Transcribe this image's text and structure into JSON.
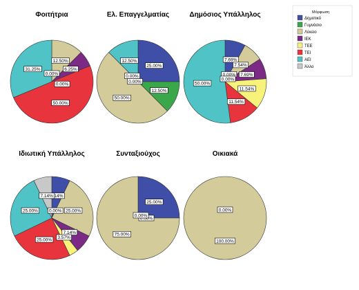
{
  "colors": {
    "Δημοτικό": "#3f4fa8",
    "Γυμνάσιο": "#3aa84a",
    "Λύκειο": "#d4cb9a",
    "ΙΕΚ": "#7b2a86",
    "ΤΕΕ": "#f7f27a",
    "ΤΕΙ": "#e8343c",
    "ΑΕΙ": "#4fc3c5",
    "Άλλο": "#c8c8c8"
  },
  "chart_data": [
    {
      "type": "pie",
      "title": "Φοιτήτρια",
      "slices": [
        {
          "category": "Δημοτικό",
          "value": 0.0,
          "label": "0.00%"
        },
        {
          "category": "Λύκειο",
          "value": 12.5,
          "label": "12.50%"
        },
        {
          "category": "ΙΕΚ",
          "value": 6.25,
          "label": "6.25%"
        },
        {
          "category": "ΤΕΕ",
          "value": 0.0,
          "label": "0.00%"
        },
        {
          "category": "ΤΕΙ",
          "value": 50.0,
          "label": "50.00%"
        },
        {
          "category": "ΑΕΙ",
          "value": 31.25,
          "label": "31.25%"
        }
      ]
    },
    {
      "type": "pie",
      "title": "Ελ. Επαγγελματίας",
      "slices": [
        {
          "category": "Δημοτικό",
          "value": 25.0,
          "label": "25.00%"
        },
        {
          "category": "Γυμνάσιο",
          "value": 12.5,
          "label": "12.50%"
        },
        {
          "category": "Λύκειο",
          "value": 50.0,
          "label": "50.00%"
        },
        {
          "category": "ΙΕΚ",
          "value": 0.0,
          "label": "0.00%"
        },
        {
          "category": "ΤΕΕ",
          "value": 0.0,
          "label": "0.00%"
        },
        {
          "category": "ΑΕΙ",
          "value": 12.5,
          "label": "12.50%"
        }
      ]
    },
    {
      "type": "pie",
      "title": "Δημόσιος Υπάλληλος",
      "slices": [
        {
          "category": "Δημοτικό",
          "value": 7.69,
          "label": "7.69%"
        },
        {
          "category": "Γυμνάσιο",
          "value": 0.0,
          "label": "0.00%"
        },
        {
          "category": "Λύκειο",
          "value": 7.54,
          "label": "7.54%"
        },
        {
          "category": "ΙΕΚ",
          "value": 7.69,
          "label": "7.69%"
        },
        {
          "category": "ΤΕΕ",
          "value": 11.54,
          "label": "11.54%"
        },
        {
          "category": "ΤΕΙ",
          "value": 11.54,
          "label": "11.54%"
        },
        {
          "category": "ΑΕΙ",
          "value": 50.0,
          "label": "50.00%"
        },
        {
          "category": "Άλλο",
          "value": 0.0,
          "label": "0.00%"
        }
      ]
    },
    {
      "type": "pie",
      "title": "Ιδιωτική Υπάλληλος",
      "slices": [
        {
          "category": "Δημοτικό",
          "value": 7.14,
          "label": "7.14%"
        },
        {
          "category": "Γυμνάσιο",
          "value": 0.0,
          "label": "0.00%"
        },
        {
          "category": "Λύκειο",
          "value": 25.0,
          "label": "25.00%"
        },
        {
          "category": "ΙΕΚ",
          "value": 7.14,
          "label": "7.14%"
        },
        {
          "category": "ΤΕΕ",
          "value": 3.57,
          "label": "3.57%"
        },
        {
          "category": "ΤΕΙ",
          "value": 25.0,
          "label": "25.00%"
        },
        {
          "category": "ΑΕΙ",
          "value": 25.0,
          "label": "25.00%"
        },
        {
          "category": "Άλλο",
          "value": 7.14,
          "label": "7.14%"
        }
      ]
    },
    {
      "type": "pie",
      "title": "Συνταξιούχος",
      "slices": [
        {
          "category": "Δημοτικό",
          "value": 25.0,
          "label": "25.00%"
        },
        {
          "category": "Γυμνάσιο",
          "value": 0.0,
          "label": "0.00%"
        },
        {
          "category": "Λύκειο",
          "value": 75.0,
          "label": "75.00%"
        },
        {
          "category": "ΑΕΙ",
          "value": 0.0,
          "label": "0.00%"
        }
      ]
    },
    {
      "type": "pie",
      "title": "Οικιακά",
      "slices": [
        {
          "category": "Δημοτικό",
          "value": 0.0,
          "label": "0.00%"
        },
        {
          "category": "Λύκειο",
          "value": 100.0,
          "label": "100.00%"
        }
      ]
    }
  ],
  "legend": {
    "title": "Μόρφωση",
    "entries": [
      "Δημοτικό",
      "Γυμνάσιο",
      "Λύκειο",
      "ΙΕΚ",
      "ΤΕΕ",
      "ΤΕΙ",
      "ΑΕΙ",
      "Άλλο"
    ]
  }
}
